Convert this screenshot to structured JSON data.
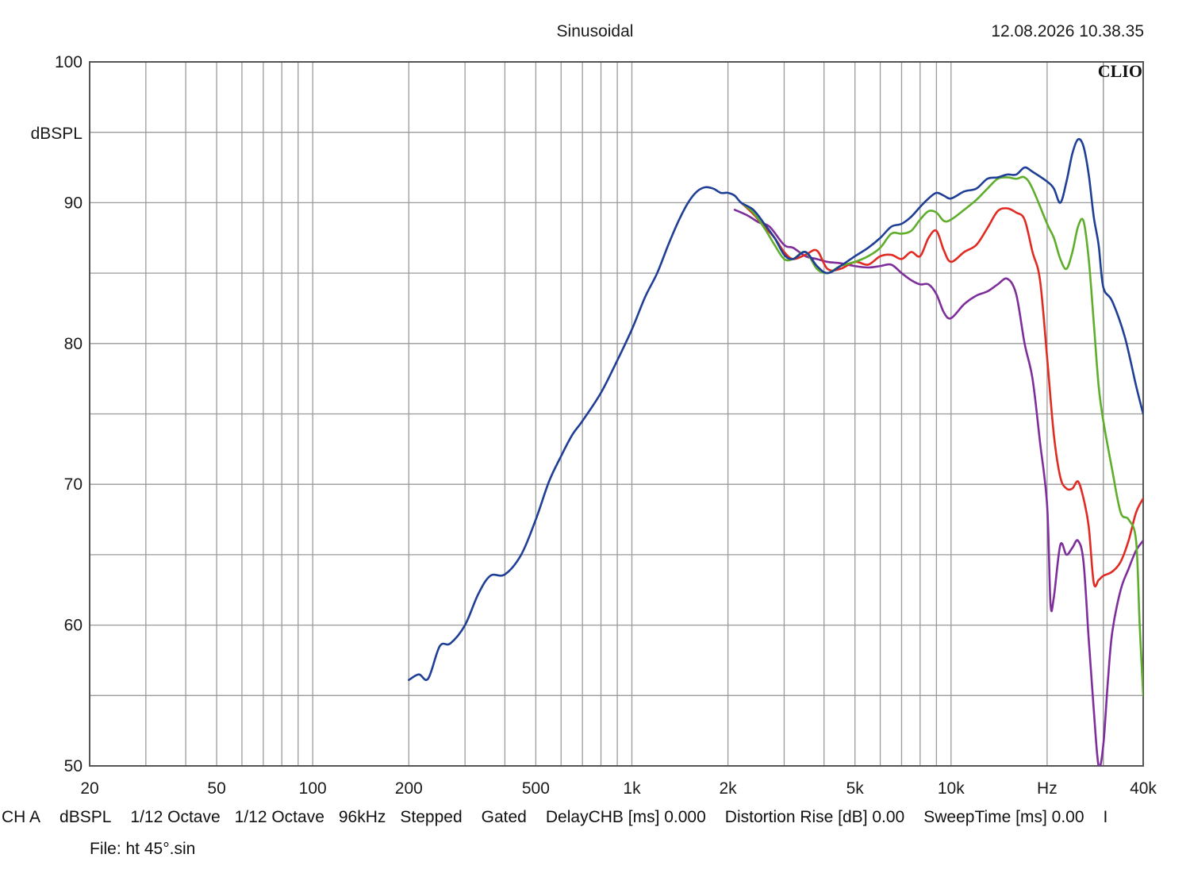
{
  "header": {
    "title": "Sinusoidal",
    "timestamp": "12.08.2026 10.38.35",
    "brand": "CLIO"
  },
  "chart_data": {
    "type": "line",
    "title": "Sinusoidal",
    "ylabel": "dBSPL",
    "xlabel": "Hz",
    "x_scale": "log",
    "xlim": [
      20,
      40000
    ],
    "ylim": [
      50,
      100
    ],
    "grid": true,
    "x_tick_labels": [
      {
        "value": 20,
        "label": "20"
      },
      {
        "value": 50,
        "label": "50"
      },
      {
        "value": 100,
        "label": "100"
      },
      {
        "value": 200,
        "label": "200"
      },
      {
        "value": 500,
        "label": "500"
      },
      {
        "value": 1000,
        "label": "1k"
      },
      {
        "value": 2000,
        "label": "2k"
      },
      {
        "value": 5000,
        "label": "5k"
      },
      {
        "value": 10000,
        "label": "10k"
      },
      {
        "value": 20000,
        "label": "Hz"
      },
      {
        "value": 40000,
        "label": "40k"
      }
    ],
    "y_tick_labels": [
      {
        "value": 100,
        "label": "100"
      },
      {
        "value": 90,
        "label": "90"
      },
      {
        "value": 80,
        "label": "80"
      },
      {
        "value": 70,
        "label": "70"
      },
      {
        "value": 60,
        "label": "60"
      },
      {
        "value": 50,
        "label": "50"
      }
    ],
    "series": [
      {
        "color": "#1f3f96",
        "points": [
          [
            200,
            56.1
          ],
          [
            215,
            56.5
          ],
          [
            230,
            56.2
          ],
          [
            250,
            58.5
          ],
          [
            270,
            58.7
          ],
          [
            300,
            60.0
          ],
          [
            330,
            62.2
          ],
          [
            360,
            63.5
          ],
          [
            400,
            63.6
          ],
          [
            450,
            65.0
          ],
          [
            500,
            67.5
          ],
          [
            550,
            70.2
          ],
          [
            600,
            72.0
          ],
          [
            650,
            73.5
          ],
          [
            700,
            74.5
          ],
          [
            800,
            76.5
          ],
          [
            900,
            78.8
          ],
          [
            1000,
            81.0
          ],
          [
            1100,
            83.3
          ],
          [
            1200,
            85.0
          ],
          [
            1300,
            87.0
          ],
          [
            1400,
            88.7
          ],
          [
            1500,
            90.0
          ],
          [
            1600,
            90.8
          ],
          [
            1700,
            91.1
          ],
          [
            1800,
            91.0
          ],
          [
            1900,
            90.7
          ],
          [
            2000,
            90.7
          ],
          [
            2100,
            90.5
          ],
          [
            2200,
            90.0
          ],
          [
            2400,
            89.5
          ],
          [
            2600,
            88.5
          ],
          [
            2800,
            87.5
          ],
          [
            3000,
            86.3
          ],
          [
            3200,
            86.0
          ],
          [
            3500,
            86.5
          ],
          [
            3800,
            85.5
          ],
          [
            4100,
            85.0
          ],
          [
            4500,
            85.5
          ],
          [
            5000,
            86.2
          ],
          [
            5500,
            86.8
          ],
          [
            6000,
            87.5
          ],
          [
            6500,
            88.3
          ],
          [
            7000,
            88.5
          ],
          [
            7500,
            89.0
          ],
          [
            8000,
            89.7
          ],
          [
            8500,
            90.3
          ],
          [
            9000,
            90.7
          ],
          [
            9500,
            90.5
          ],
          [
            10000,
            90.3
          ],
          [
            11000,
            90.8
          ],
          [
            12000,
            91.0
          ],
          [
            13000,
            91.7
          ],
          [
            14000,
            91.8
          ],
          [
            15000,
            92.0
          ],
          [
            16000,
            92.0
          ],
          [
            17000,
            92.5
          ],
          [
            18000,
            92.2
          ],
          [
            20000,
            91.5
          ],
          [
            21000,
            91.0
          ],
          [
            22000,
            90.0
          ],
          [
            23000,
            91.5
          ],
          [
            24000,
            93.5
          ],
          [
            25000,
            94.5
          ],
          [
            26000,
            94.0
          ],
          [
            27000,
            92.0
          ],
          [
            28000,
            89.0
          ],
          [
            29000,
            87.0
          ],
          [
            30000,
            84.0
          ],
          [
            32000,
            83.0
          ],
          [
            35000,
            80.5
          ],
          [
            38000,
            77.0
          ],
          [
            40000,
            75.0
          ]
        ]
      },
      {
        "color": "#5fae2b",
        "points": [
          [
            2200,
            90.0
          ],
          [
            2400,
            89.3
          ],
          [
            2600,
            88.2
          ],
          [
            2800,
            87.0
          ],
          [
            3000,
            86.0
          ],
          [
            3200,
            86.0
          ],
          [
            3500,
            86.5
          ],
          [
            3800,
            85.3
          ],
          [
            4100,
            85.0
          ],
          [
            4500,
            85.5
          ],
          [
            5000,
            85.8
          ],
          [
            5500,
            86.2
          ],
          [
            6000,
            86.8
          ],
          [
            6500,
            87.8
          ],
          [
            7000,
            87.8
          ],
          [
            7500,
            88.0
          ],
          [
            8000,
            88.8
          ],
          [
            8500,
            89.4
          ],
          [
            9000,
            89.3
          ],
          [
            9500,
            88.7
          ],
          [
            10000,
            88.8
          ],
          [
            11000,
            89.5
          ],
          [
            12000,
            90.2
          ],
          [
            13000,
            91.0
          ],
          [
            14000,
            91.7
          ],
          [
            15000,
            91.8
          ],
          [
            16000,
            91.7
          ],
          [
            17000,
            91.8
          ],
          [
            18000,
            91.0
          ],
          [
            20000,
            88.5
          ],
          [
            21000,
            87.5
          ],
          [
            22000,
            86.0
          ],
          [
            23000,
            85.3
          ],
          [
            24000,
            86.5
          ],
          [
            25000,
            88.3
          ],
          [
            26000,
            88.7
          ],
          [
            27000,
            86.0
          ],
          [
            28000,
            81.5
          ],
          [
            29000,
            77.0
          ],
          [
            30000,
            74.5
          ],
          [
            32000,
            71.0
          ],
          [
            34000,
            68.0
          ],
          [
            36000,
            67.5
          ],
          [
            38000,
            66.0
          ],
          [
            39000,
            60.0
          ],
          [
            40000,
            55.0
          ]
        ]
      },
      {
        "color": "#e02a22",
        "points": [
          [
            2200,
            90.0
          ],
          [
            2400,
            89.2
          ],
          [
            2600,
            88.3
          ],
          [
            2800,
            87.5
          ],
          [
            3000,
            86.5
          ],
          [
            3200,
            86.0
          ],
          [
            3500,
            86.3
          ],
          [
            3800,
            86.6
          ],
          [
            4100,
            85.3
          ],
          [
            4500,
            85.3
          ],
          [
            5000,
            85.8
          ],
          [
            5500,
            85.6
          ],
          [
            6000,
            86.2
          ],
          [
            6500,
            86.3
          ],
          [
            7000,
            86.0
          ],
          [
            7500,
            86.5
          ],
          [
            8000,
            86.2
          ],
          [
            8500,
            87.5
          ],
          [
            9000,
            88.0
          ],
          [
            9500,
            86.6
          ],
          [
            10000,
            85.8
          ],
          [
            11000,
            86.5
          ],
          [
            12000,
            87.0
          ],
          [
            13000,
            88.2
          ],
          [
            14000,
            89.4
          ],
          [
            15000,
            89.6
          ],
          [
            16000,
            89.3
          ],
          [
            17000,
            88.8
          ],
          [
            18000,
            86.5
          ],
          [
            19000,
            84.5
          ],
          [
            20000,
            79.0
          ],
          [
            21000,
            73.5
          ],
          [
            22000,
            70.5
          ],
          [
            23000,
            69.7
          ],
          [
            24000,
            69.7
          ],
          [
            25000,
            70.2
          ],
          [
            26000,
            69.0
          ],
          [
            27000,
            67.0
          ],
          [
            28000,
            63.0
          ],
          [
            29000,
            63.2
          ],
          [
            30000,
            63.5
          ],
          [
            32000,
            63.8
          ],
          [
            34000,
            64.5
          ],
          [
            36000,
            66.0
          ],
          [
            38000,
            68.0
          ],
          [
            40000,
            69.0
          ]
        ]
      },
      {
        "color": "#7e2e9a",
        "points": [
          [
            2100,
            89.5
          ],
          [
            2300,
            89.1
          ],
          [
            2500,
            88.6
          ],
          [
            2700,
            88.3
          ],
          [
            3000,
            87.0
          ],
          [
            3200,
            86.8
          ],
          [
            3500,
            86.2
          ],
          [
            3800,
            86.0
          ],
          [
            4100,
            85.8
          ],
          [
            4500,
            85.7
          ],
          [
            5000,
            85.5
          ],
          [
            5500,
            85.4
          ],
          [
            6000,
            85.5
          ],
          [
            6500,
            85.6
          ],
          [
            7000,
            85.0
          ],
          [
            7500,
            84.5
          ],
          [
            8000,
            84.2
          ],
          [
            8500,
            84.2
          ],
          [
            9000,
            83.5
          ],
          [
            9500,
            82.2
          ],
          [
            10000,
            81.8
          ],
          [
            11000,
            82.8
          ],
          [
            12000,
            83.4
          ],
          [
            13000,
            83.7
          ],
          [
            14000,
            84.2
          ],
          [
            15000,
            84.6
          ],
          [
            16000,
            83.5
          ],
          [
            17000,
            80.0
          ],
          [
            18000,
            77.5
          ],
          [
            19000,
            73.0
          ],
          [
            20000,
            68.5
          ],
          [
            20500,
            61.5
          ],
          [
            21000,
            62.0
          ],
          [
            22000,
            65.7
          ],
          [
            23000,
            65.0
          ],
          [
            24000,
            65.5
          ],
          [
            25000,
            66.0
          ],
          [
            26000,
            64.5
          ],
          [
            27000,
            59.0
          ],
          [
            28000,
            54.0
          ],
          [
            29000,
            50.0
          ],
          [
            30000,
            51.5
          ],
          [
            31000,
            56.0
          ],
          [
            32000,
            59.5
          ],
          [
            34000,
            62.5
          ],
          [
            36000,
            64.0
          ],
          [
            38000,
            65.3
          ],
          [
            40000,
            66.0
          ]
        ]
      }
    ]
  },
  "info_bar": {
    "items": [
      "CH A",
      "dBSPL",
      "1/12 Octave",
      "1/12 Octave",
      "96kHz",
      "Stepped",
      "Gated",
      "DelayCHB [ms] 0.000",
      "Distortion Rise [dB] 0.00",
      "SweepTime [ms] 0.00",
      "I"
    ]
  },
  "file": {
    "label": "File: ht 45°.sin"
  }
}
